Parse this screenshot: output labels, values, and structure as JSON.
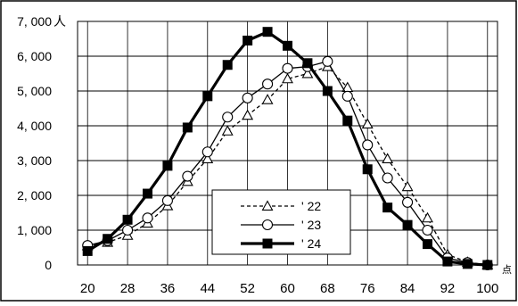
{
  "chart_data": {
    "type": "line",
    "x": [
      20,
      24,
      28,
      32,
      36,
      40,
      44,
      48,
      52,
      56,
      60,
      64,
      68,
      72,
      76,
      80,
      84,
      88,
      92,
      96,
      100
    ],
    "x_ticks": [
      "20",
      "28",
      "36",
      "44",
      "52",
      "60",
      "68",
      "76",
      "84",
      "92",
      "100"
    ],
    "x_tick_values": [
      20,
      28,
      36,
      44,
      52,
      60,
      68,
      76,
      84,
      92,
      100
    ],
    "y_ticks": [
      "0",
      "1, 000",
      "2, 000",
      "3, 000",
      "4, 000",
      "5, 000",
      "6, 000",
      "7, 000"
    ],
    "y_tick_values": [
      0,
      1000,
      2000,
      3000,
      4000,
      5000,
      6000,
      7000
    ],
    "xlim": [
      18,
      102
    ],
    "ylim": [
      0,
      7000
    ],
    "x_unit": "点",
    "y_unit": "人",
    "grid": "horizontal-and-vertical",
    "legend_position": "bottom-center",
    "series": [
      {
        "name": "' 22",
        "marker": "triangle-open",
        "line": "dashed",
        "color": "#000000",
        "values": [
          550,
          650,
          850,
          1200,
          1700,
          2400,
          3050,
          3850,
          4300,
          4750,
          5350,
          5500,
          5700,
          5100,
          4050,
          3050,
          2250,
          1350,
          300,
          80,
          0
        ]
      },
      {
        "name": "' 23",
        "marker": "circle-open",
        "line": "solid-thin",
        "color": "#000000",
        "values": [
          560,
          700,
          1000,
          1350,
          1850,
          2550,
          3250,
          4250,
          4800,
          5200,
          5650,
          5700,
          5850,
          4850,
          3450,
          2500,
          1800,
          1000,
          200,
          70,
          0
        ]
      },
      {
        "name": "' 24",
        "marker": "square-filled",
        "line": "solid-thick",
        "color": "#000000",
        "values": [
          400,
          750,
          1300,
          2050,
          2850,
          3950,
          4850,
          5750,
          6450,
          6700,
          6300,
          5800,
          5000,
          4150,
          2750,
          1650,
          1150,
          600,
          100,
          30,
          0
        ]
      }
    ]
  }
}
